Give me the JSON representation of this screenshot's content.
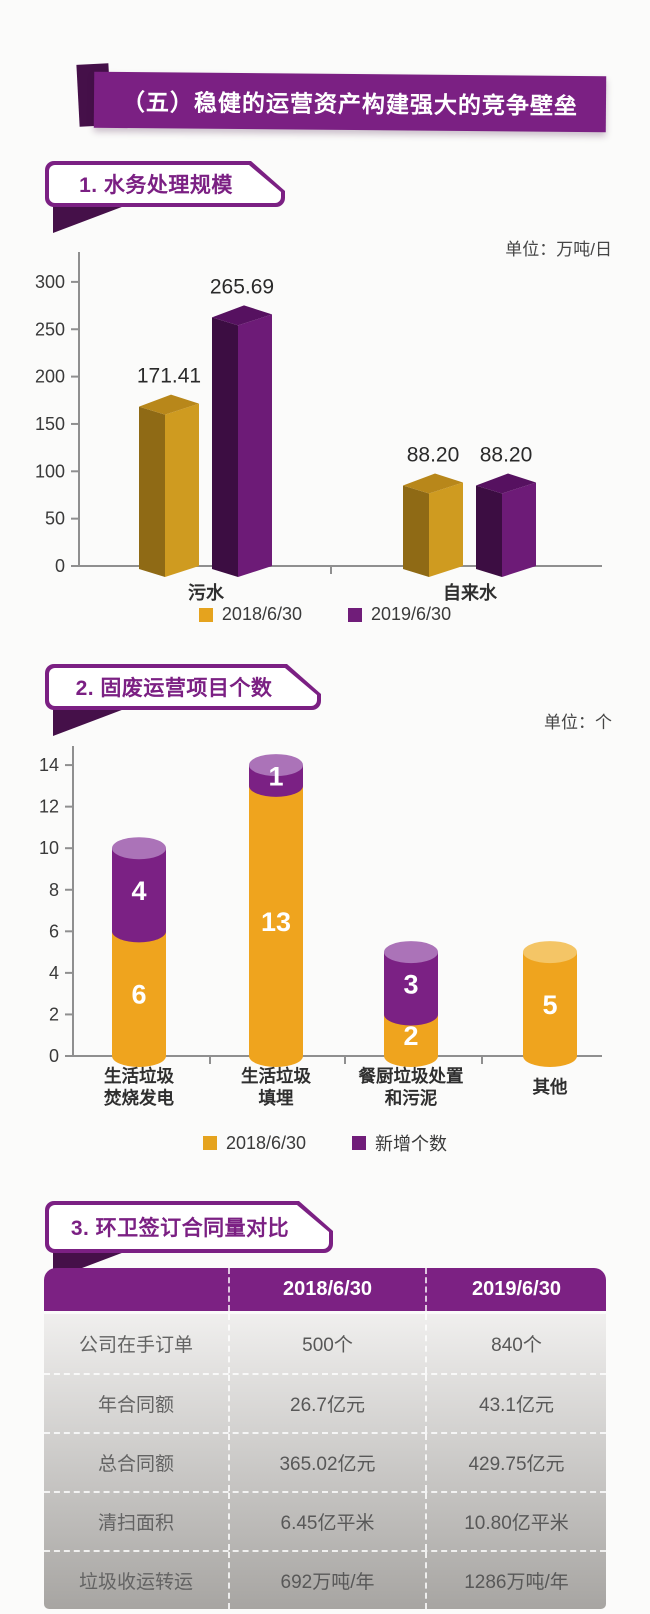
{
  "banner": {
    "title": "（五）稳健的运营资产构建强大的竞争壁垒"
  },
  "sections": [
    {
      "heading": "1. 水务处理规模",
      "unit_label": "单位：万吨/日"
    },
    {
      "heading": "2. 固废运营项目个数",
      "unit_label": "单位：个"
    },
    {
      "heading": "3. 环卫签订合同量对比"
    }
  ],
  "chart_data": [
    {
      "type": "bar",
      "subtype": "grouped-3d",
      "title": "1. 水务处理规模",
      "unit": "单位：万吨/日",
      "categories": [
        "污水",
        "自来水"
      ],
      "series": [
        {
          "name": "2018/6/30",
          "values": [
            171.41,
            88.2
          ]
        },
        {
          "name": "2019/6/30",
          "values": [
            265.69,
            88.2
          ]
        }
      ],
      "ylim": [
        0,
        300
      ],
      "yticks": [
        0,
        50,
        100,
        150,
        200,
        250,
        300
      ],
      "grid": false,
      "legend_position": "bottom"
    },
    {
      "type": "bar",
      "subtype": "stacked-cylinder",
      "title": "2. 固废运营项目个数",
      "unit": "单位：个",
      "categories": [
        "生活垃圾焚烧发电",
        "生活垃圾填埋",
        "餐厨垃圾处置和污泥",
        "其他"
      ],
      "categories_lines": [
        [
          "生活垃圾",
          "焚烧发电"
        ],
        [
          "生活垃圾",
          "填埋"
        ],
        [
          "餐厨垃圾处置",
          "和污泥"
        ],
        [
          "其他"
        ]
      ],
      "series": [
        {
          "name": "2018/6/30",
          "values": [
            6,
            13,
            2,
            5
          ]
        },
        {
          "name": "新增个数",
          "values": [
            4,
            1,
            3,
            0
          ]
        }
      ],
      "ylim": [
        0,
        14
      ],
      "yticks": [
        0,
        2,
        4,
        6,
        8,
        10,
        12,
        14
      ],
      "grid": false,
      "legend_position": "bottom"
    },
    {
      "type": "table",
      "title": "3. 环卫签订合同量对比",
      "columns": [
        "",
        "2018/6/30",
        "2019/6/30"
      ],
      "rows": [
        [
          "公司在手订单",
          "500个",
          "840个"
        ],
        [
          "年合同额",
          "26.7亿元",
          "43.1亿元"
        ],
        [
          "总合同额",
          "365.02亿元",
          "429.75亿元"
        ],
        [
          "清扫面积",
          "6.45亿平米",
          "10.80亿平米"
        ],
        [
          "垃圾收运转运",
          "692万吨/年",
          "1286万吨/年"
        ]
      ]
    }
  ],
  "colors": {
    "brand_purple": "#7b2083",
    "dark_purple": "#451049",
    "gold_front": "#cf9b20",
    "gold_side": "#8f6a15",
    "gold_top": "#b8871a",
    "purple_front": "#6d1b77",
    "purple_side": "#3c0d42",
    "purple_top": "#561160",
    "cyl_gold": "#efa41e",
    "cyl_gold_cap": "#f4c566",
    "cyl_purple": "#7b2184",
    "cyl_purple_cap": "#ab73b8",
    "legend_gold": "#e5a31e",
    "legend_purple": "#701d79",
    "axis": "#8f8f8f",
    "tick_text": "#3a3a3a",
    "data_label_text": "#2a2a2a",
    "segment_label_text": "#ffffff",
    "table_header_bg": "#7c2183"
  }
}
